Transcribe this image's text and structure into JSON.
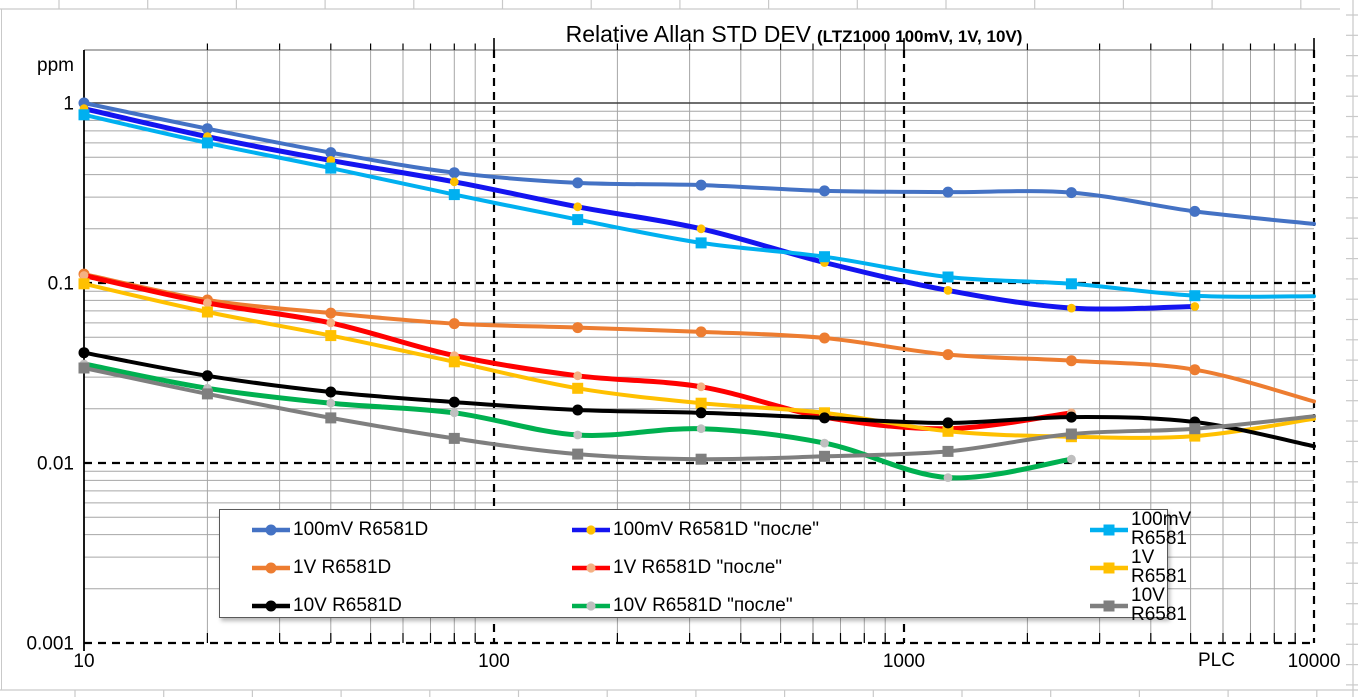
{
  "title": {
    "main": "Relative Allan STD DEV",
    "sub": "(LTZ1000 100mV, 1V, 10V)"
  },
  "axes": {
    "y_unit": "ppm",
    "x_unit": "PLC",
    "x_scale": "log",
    "y_scale": "log",
    "x_range": [
      10,
      10000
    ],
    "y_range": [
      0.001,
      2
    ],
    "y_ticks": [
      {
        "label": "1",
        "value": 1
      },
      {
        "label": "0.1",
        "value": 0.1
      },
      {
        "label": "0.01",
        "value": 0.01
      },
      {
        "label": "0.001",
        "value": 0.001
      }
    ],
    "x_ticks": [
      {
        "label": "10",
        "value": 10
      },
      {
        "label": "100",
        "value": 100
      },
      {
        "label": "1000",
        "value": 1000
      },
      {
        "label": "10000",
        "value": 10000
      }
    ],
    "grid": {
      "minor": "on",
      "major": "dashed"
    }
  },
  "colors": {
    "minor_grid": "#A6A6A6",
    "major_dash": "#000000",
    "unity_line": "#3F3F3F",
    "plot_top_border": "#7F7F7F",
    "axis": "#000000",
    "sheet_line": "#C9C9C9",
    "legend_border": "#595959"
  },
  "chart_data": {
    "type": "line",
    "x_scale": "log",
    "y_scale": "log",
    "title": "Relative Allan STD DEV (LTZ1000 100mV, 1V, 10V)",
    "xlabel": "PLC",
    "ylabel": "ppm",
    "xlim": [
      10,
      10000
    ],
    "ylim": [
      0.001,
      2
    ],
    "legend_position": "bottom-inside",
    "series": [
      {
        "name": "100mV R6581D",
        "color": "#4472C4",
        "marker": "circle",
        "width": 4,
        "x": [
          10,
          20,
          40,
          80,
          160,
          320,
          640,
          1280,
          2560,
          5120,
          10000
        ],
        "values": [
          1.0,
          0.72,
          0.53,
          0.41,
          0.36,
          0.35,
          0.325,
          0.32,
          0.318,
          0.25,
          0.213
        ]
      },
      {
        "name": "100mV R6581D \"после\"",
        "color": "#1414F0",
        "marker": "dot",
        "marker_color": "#FFC000",
        "width": 5,
        "x": [
          10,
          20,
          40,
          80,
          160,
          320,
          640,
          1280,
          2560,
          5120
        ],
        "values": [
          0.93,
          0.65,
          0.48,
          0.365,
          0.265,
          0.2,
          0.13,
          0.091,
          0.0725,
          0.074
        ]
      },
      {
        "name": "100mV R6581",
        "color": "#00B0F0",
        "marker": "square",
        "width": 4,
        "x": [
          10,
          20,
          40,
          80,
          160,
          320,
          640,
          1280,
          2560,
          5120,
          10000
        ],
        "values": [
          0.86,
          0.6,
          0.435,
          0.31,
          0.225,
          0.167,
          0.14,
          0.108,
          0.099,
          0.085,
          0.0845
        ]
      },
      {
        "name": "1V R6581D",
        "color": "#ED7D31",
        "marker": "circle",
        "width": 4,
        "x": [
          10,
          20,
          40,
          80,
          160,
          320,
          640,
          1280,
          2560,
          5120,
          10000
        ],
        "values": [
          0.112,
          0.0805,
          0.068,
          0.0595,
          0.0565,
          0.0535,
          0.0495,
          0.04,
          0.037,
          0.033,
          0.022
        ]
      },
      {
        "name": "1V R6581D \"после\"",
        "color": "#FF0000",
        "marker": "dot",
        "marker_color": "#F4B183",
        "width": 5,
        "x": [
          10,
          20,
          40,
          80,
          160,
          320,
          640,
          1280,
          2560
        ],
        "values": [
          0.11,
          0.0775,
          0.06,
          0.0395,
          0.0305,
          0.0265,
          0.018,
          0.0155,
          0.019
        ]
      },
      {
        "name": "1V R6581",
        "color": "#FFC000",
        "marker": "square",
        "width": 4,
        "x": [
          10,
          20,
          40,
          80,
          160,
          320,
          640,
          1280,
          2560,
          5120,
          10000
        ],
        "values": [
          0.099,
          0.069,
          0.051,
          0.0365,
          0.026,
          0.0215,
          0.019,
          0.015,
          0.014,
          0.0141,
          0.0176
        ]
      },
      {
        "name": "10V R6581D",
        "color": "#000000",
        "marker": "circle",
        "width": 4,
        "x": [
          10,
          20,
          40,
          80,
          160,
          320,
          640,
          1280,
          2560,
          5120,
          10000
        ],
        "values": [
          0.041,
          0.0305,
          0.0248,
          0.0218,
          0.0197,
          0.019,
          0.0178,
          0.0167,
          0.018,
          0.0169,
          0.0124
        ]
      },
      {
        "name": "10V R6581D \"после\"",
        "color": "#00B050",
        "marker": "dot",
        "marker_color": "#BFBFBF",
        "width": 5,
        "x": [
          10,
          20,
          40,
          80,
          160,
          320,
          640,
          1280,
          2560
        ],
        "values": [
          0.0355,
          0.026,
          0.0215,
          0.019,
          0.0143,
          0.0155,
          0.0129,
          0.0083,
          0.0105
        ]
      },
      {
        "name": "10V R6581",
        "color": "#7F7F7F",
        "marker": "square",
        "width": 4,
        "x": [
          10,
          20,
          40,
          80,
          160,
          320,
          640,
          1280,
          2560,
          5120,
          10000
        ],
        "values": [
          0.0337,
          0.0242,
          0.0178,
          0.0137,
          0.0112,
          0.0105,
          0.0109,
          0.0116,
          0.0145,
          0.0155,
          0.0182
        ]
      }
    ]
  }
}
